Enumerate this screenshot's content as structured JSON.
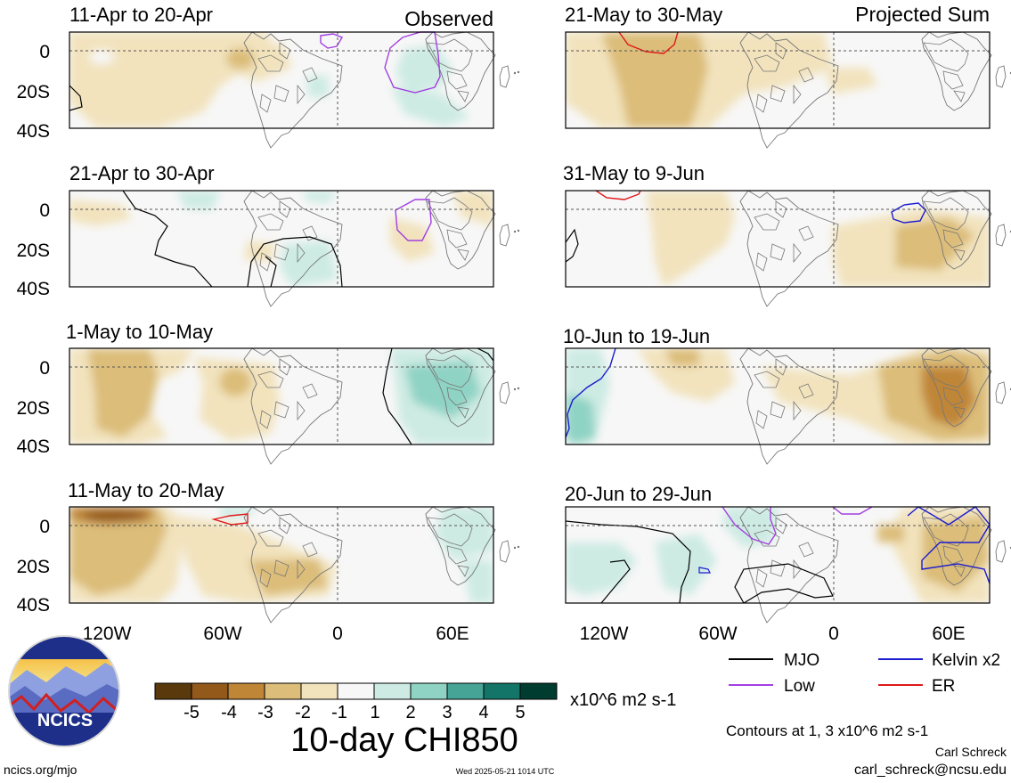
{
  "figure": {
    "title": "10-day CHI850",
    "unit": "x10^6 m2 s-1",
    "left_column_label": "Observed",
    "right_column_label": "Projected Sum",
    "y_ticks": [
      "0",
      "20S",
      "40S"
    ],
    "x_ticks": [
      "120W",
      "60W",
      "0",
      "60E"
    ],
    "colorbar_ticks": [
      "-5",
      "-4",
      "-3",
      "-2",
      "-1",
      "1",
      "2",
      "3",
      "4",
      "5"
    ],
    "colorbar_colors": [
      "#5a3a0c",
      "#93591b",
      "#c08637",
      "#dcbd79",
      "#f2e3bd",
      "#f7f7f7",
      "#cdebe3",
      "#8fd3c4",
      "#45a496",
      "#137567",
      "#003c2f"
    ],
    "legend": [
      {
        "label": "MJO",
        "color": "#000000"
      },
      {
        "label": "Kelvin x2",
        "color": "#1c1cd0"
      },
      {
        "label": "Low",
        "color": "#a23fe0"
      },
      {
        "label": "ER",
        "color": "#e01818"
      }
    ],
    "contour_note": "Contours at 1, 3 x10^6 m2 s-1",
    "author": "Carl Schreck",
    "email": "carl_schreck@ncsu.edu",
    "url": "ncics.org/mjo",
    "timestamp": "Wed 2025-05-21 1014 UTC",
    "logo_text": "NCICS"
  },
  "panels": [
    {
      "label": "11-Apr to 20-Apr"
    },
    {
      "label": "21-Apr to 30-Apr"
    },
    {
      "label": "1-May to 10-May"
    },
    {
      "label": "11-May to 20-May"
    },
    {
      "label": "21-May to 30-May"
    },
    {
      "label": "31-May to 9-Jun"
    },
    {
      "label": "10-Jun to 19-Jun"
    },
    {
      "label": "20-Jun to 29-Jun"
    }
  ]
}
